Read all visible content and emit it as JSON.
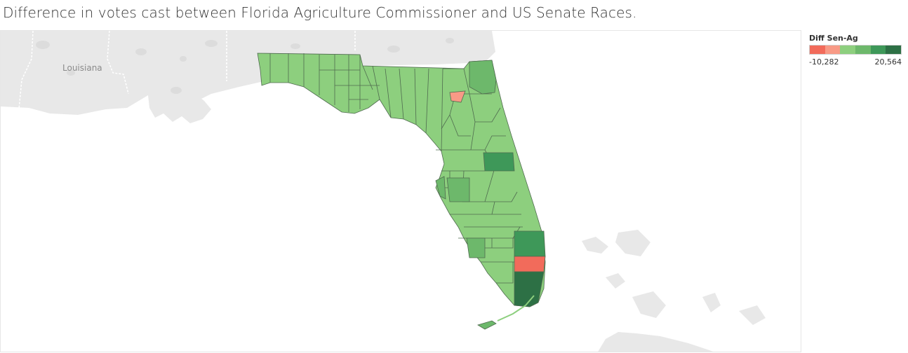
{
  "title": "Difference in votes cast between Florida Agriculture Commissioner and US Senate Races.",
  "legend": {
    "title": "Diff Sen-Ag",
    "min_label": "-10,282",
    "max_label": "20,564",
    "colors": [
      "#f26b5b",
      "#f89a86",
      "#8dcf7e",
      "#6db86b",
      "#3e9859",
      "#2d7045"
    ]
  },
  "basemap": {
    "state_label": "Louisiana",
    "land_color": "#e8e8e8",
    "water_color": "#ffffff"
  },
  "map_colors": {
    "base": "#8dcf7e",
    "mid": "#6db86b",
    "strong": "#3e9859",
    "darkest": "#2d7045",
    "negative_light": "#f89a86",
    "negative": "#f26b5b"
  }
}
